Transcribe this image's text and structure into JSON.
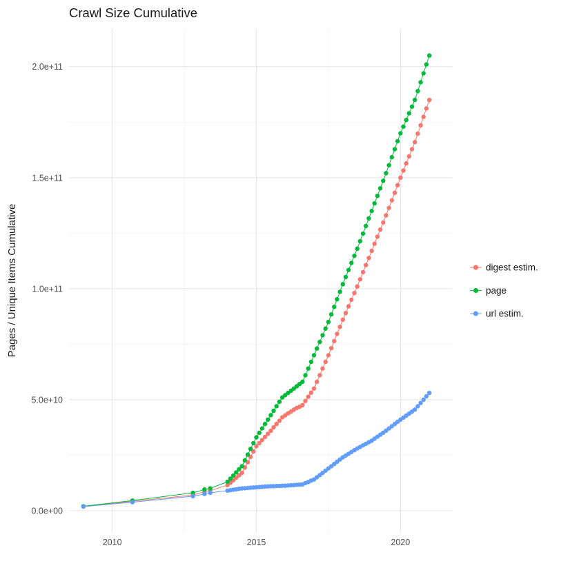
{
  "chart_data": {
    "type": "scatter",
    "title": "Crawl Size Cumulative",
    "xlabel": "",
    "ylabel": "Pages / Unique Items Cumulative",
    "y_unit_note": "values in billions (1e9); axis shown in scientific notation",
    "grid": true,
    "legend_position": "right",
    "xlim": [
      2008.5,
      2021.8
    ],
    "ylim": [
      -10,
      217
    ],
    "x_ticks": [
      2010,
      2015,
      2020
    ],
    "x_tick_labels": [
      "2010",
      "2015",
      "2020"
    ],
    "x_minor_ticks": [
      2012.5,
      2017.5
    ],
    "y_ticks": [
      0,
      50,
      100,
      150,
      200
    ],
    "y_tick_labels": [
      "0.0e+00",
      "5.0e+10",
      "1.0e+11",
      "1.5e+11",
      "2.0e+11"
    ],
    "y_minor_ticks": [
      25,
      75,
      125,
      175
    ],
    "x": [
      2009,
      2010.7,
      2012.8,
      2013.2,
      2013.4,
      2014,
      2014.1,
      2014.2,
      2014.3,
      2014.4,
      2014.5,
      2014.6,
      2014.7,
      2014.8,
      2014.9,
      2015,
      2015.1,
      2015.2,
      2015.3,
      2015.4,
      2015.5,
      2015.6,
      2015.7,
      2015.8,
      2015.9,
      2016,
      2016.1,
      2016.2,
      2016.3,
      2016.4,
      2016.5,
      2016.6,
      2016.7,
      2016.8,
      2016.9,
      2017,
      2017.1,
      2017.2,
      2017.3,
      2017.4,
      2017.5,
      2017.6,
      2017.7,
      2017.8,
      2017.9,
      2018,
      2018.1,
      2018.2,
      2018.3,
      2018.4,
      2018.5,
      2018.6,
      2018.7,
      2018.8,
      2018.9,
      2019,
      2019.1,
      2019.2,
      2019.3,
      2019.4,
      2019.5,
      2019.6,
      2019.7,
      2019.8,
      2019.9,
      2020,
      2020.1,
      2020.2,
      2020.3,
      2020.4,
      2020.5,
      2020.6,
      2020.7,
      2020.8,
      2020.9,
      2021
    ],
    "series": [
      {
        "name": "digest estim.",
        "color": "#F8766D",
        "values": [
          1.8,
          4.2,
          7,
          8.5,
          9,
          11.5,
          12.6,
          13.7,
          14.8,
          15.9,
          17,
          19.4,
          21.8,
          24.2,
          26.6,
          29,
          30.4,
          31.8,
          33.2,
          34.6,
          36,
          37.5,
          39,
          40.5,
          42,
          42.9,
          43.8,
          44.6,
          45.5,
          46.2,
          46.8,
          47.5,
          49.4,
          51.3,
          53.1,
          55,
          58,
          61,
          64,
          67,
          70,
          73.2,
          76.4,
          79.6,
          82.8,
          86,
          89,
          92,
          95,
          98,
          101,
          104.2,
          107.4,
          110.6,
          113.8,
          117,
          120.2,
          123.4,
          126.6,
          129.8,
          133,
          136.4,
          139.8,
          143.2,
          146.6,
          150,
          153.2,
          156.4,
          159.6,
          162.8,
          166,
          169.8,
          173.6,
          177.4,
          181.2,
          185
        ]
      },
      {
        "name": "page",
        "color": "#00BA38",
        "values": [
          2,
          4.5,
          8,
          9.5,
          10,
          13,
          14.4,
          15.8,
          17.2,
          18.6,
          20,
          22.6,
          25.2,
          27.8,
          30.4,
          33,
          35,
          37,
          39,
          41,
          43,
          45,
          47,
          49,
          51,
          52,
          53,
          54,
          55,
          56,
          57,
          58,
          61,
          64,
          67,
          70,
          73,
          76,
          79,
          82,
          85,
          88.4,
          91.8,
          95.2,
          98.6,
          102,
          105.2,
          108.4,
          111.6,
          114.8,
          118,
          121.4,
          124.8,
          128.2,
          131.6,
          135,
          138.4,
          141.8,
          145.2,
          148.6,
          152,
          155.6,
          159.2,
          162.8,
          166.4,
          170,
          173,
          176,
          179,
          182,
          185,
          189,
          193,
          197,
          201,
          205
        ]
      },
      {
        "name": "url estim.",
        "color": "#619CFF",
        "values": [
          1.8,
          3.8,
          6.5,
          7.5,
          8,
          9,
          9.2,
          9.4,
          9.6,
          9.8,
          10,
          10.1,
          10.2,
          10.3,
          10.4,
          10.5,
          10.6,
          10.7,
          10.8,
          10.9,
          11,
          11,
          11.1,
          11.1,
          11.2,
          11.2,
          11.3,
          11.4,
          11.5,
          11.6,
          11.7,
          11.8,
          12.4,
          12.9,
          13.5,
          14,
          15,
          16,
          17,
          18,
          19,
          20,
          21,
          22,
          23,
          24,
          24.8,
          25.6,
          26.4,
          27.2,
          28,
          28.7,
          29.4,
          30.1,
          30.8,
          31.5,
          32.4,
          33.3,
          34.2,
          35.1,
          36,
          37,
          38,
          39,
          40,
          41,
          41.9,
          42.8,
          43.7,
          44.6,
          45.5,
          47,
          48.5,
          50,
          51.5,
          53
        ]
      }
    ],
    "legend_labels": [
      "digest estim.",
      "page",
      "url estim."
    ]
  },
  "colors": {
    "background": "#ffffff",
    "grid_major": "#e8e8e8",
    "grid_minor": "#f4f4f4",
    "axis_text": "#4d4d4d",
    "title_text": "#1a1a1a"
  }
}
